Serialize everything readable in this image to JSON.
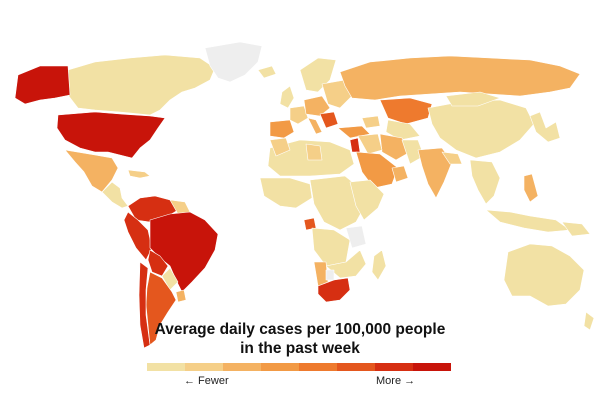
{
  "legend": {
    "title_line1": "Average daily cases per 100,000 people",
    "title_line2": "in the past week",
    "fewer_label": "← Fewer",
    "more_label": "More →",
    "scale_colors": [
      "#f2e1a4",
      "#f5cf88",
      "#f4b262",
      "#f29a45",
      "#ee7a2e",
      "#e4571e",
      "#d62f12",
      "#c8140a"
    ]
  },
  "colors": {
    "no_data": "#eeeeee",
    "ocean": "#ffffff"
  }
}
